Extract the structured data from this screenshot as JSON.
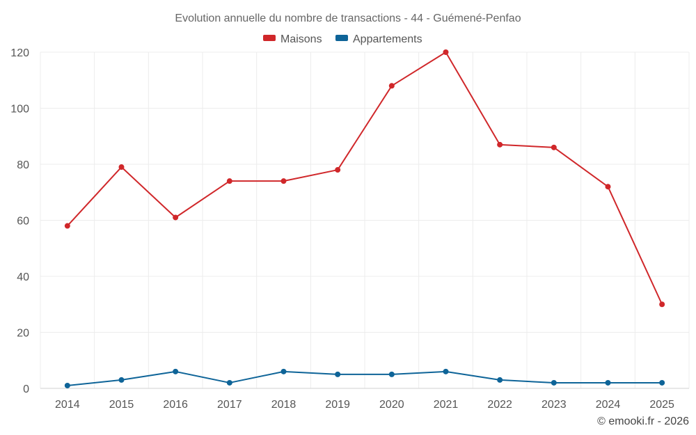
{
  "chart_data": {
    "type": "line",
    "title": "Evolution annuelle du nombre de transactions - 44 - Guémené-Penfao",
    "categories": [
      "2014",
      "2015",
      "2016",
      "2017",
      "2018",
      "2019",
      "2020",
      "2021",
      "2022",
      "2023",
      "2024",
      "2025"
    ],
    "series": [
      {
        "name": "Maisons",
        "color": "#d0272a",
        "values": [
          58,
          79,
          61,
          74,
          74,
          78,
          108,
          120,
          87,
          86,
          72,
          30
        ]
      },
      {
        "name": "Appartements",
        "color": "#0e6498",
        "values": [
          1,
          3,
          6,
          2,
          6,
          5,
          5,
          6,
          3,
          2,
          2,
          2
        ]
      }
    ],
    "ylim": [
      0,
      120
    ],
    "yticks": [
      0,
      20,
      40,
      60,
      80,
      100,
      120
    ],
    "xlabel": "",
    "ylabel": "",
    "grid": true,
    "legend": "top-center"
  },
  "credit": "© emooki.fr - 2026"
}
